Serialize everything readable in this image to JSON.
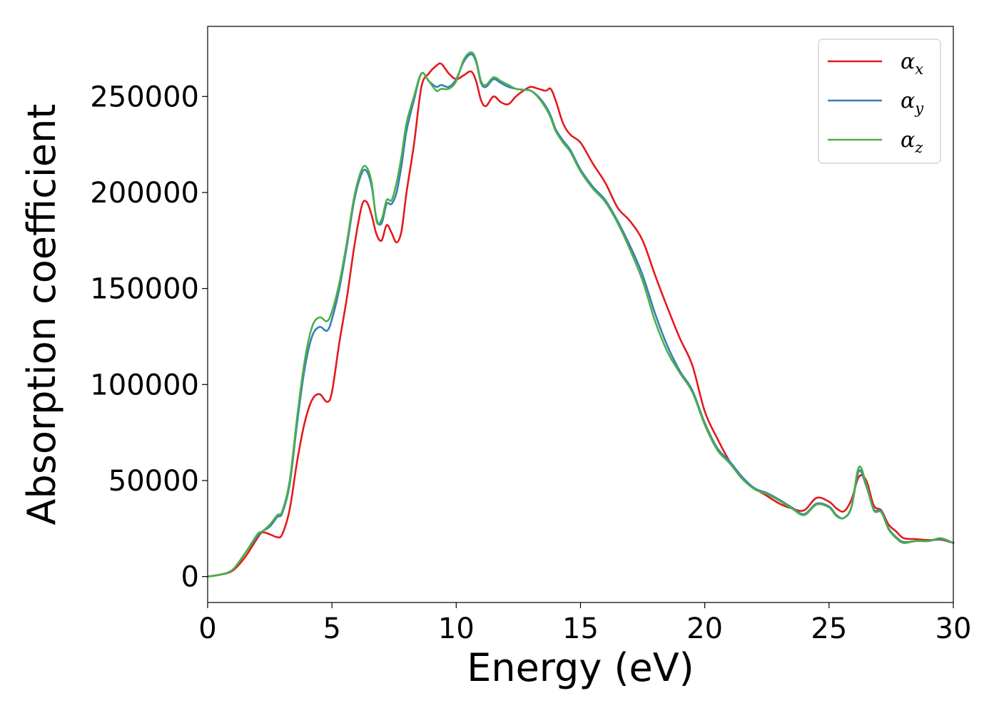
{
  "chart_data": {
    "type": "line",
    "title": "",
    "xlabel": "Energy (eV)",
    "ylabel": "Absorption coefficient",
    "xlim": [
      0,
      30
    ],
    "ylim": [
      -13500,
      286500
    ],
    "xticks": [
      0,
      5,
      10,
      15,
      20,
      25,
      30
    ],
    "yticks": [
      0,
      50000,
      100000,
      150000,
      200000,
      250000
    ],
    "grid": false,
    "legend_position": "top-right",
    "series": [
      {
        "name": "α_x",
        "legend_main": "α",
        "legend_sub": "x",
        "color": "#e41a1c",
        "x": [
          0,
          0.5,
          1.0,
          1.5,
          2.0,
          2.2,
          2.5,
          2.8,
          3.0,
          3.3,
          3.6,
          3.9,
          4.2,
          4.5,
          4.8,
          5.0,
          5.3,
          5.6,
          5.9,
          6.2,
          6.4,
          6.6,
          6.8,
          7.0,
          7.2,
          7.4,
          7.6,
          7.8,
          8.0,
          8.3,
          8.6,
          8.9,
          9.2,
          9.4,
          9.7,
          10.0,
          10.3,
          10.6,
          10.8,
          11.0,
          11.2,
          11.5,
          11.8,
          12.1,
          12.4,
          12.7,
          13.0,
          13.3,
          13.6,
          13.8,
          14.0,
          14.3,
          14.6,
          15.0,
          15.5,
          16.0,
          16.5,
          17.0,
          17.5,
          18.0,
          18.5,
          19.0,
          19.5,
          20.0,
          20.5,
          21.0,
          21.5,
          22.0,
          22.5,
          23.0,
          23.5,
          24.0,
          24.5,
          25.0,
          25.3,
          25.6,
          25.9,
          26.2,
          26.5,
          26.8,
          27.1,
          27.4,
          27.7,
          28.0,
          28.5,
          29.0,
          29.5,
          30.0
        ],
        "y": [
          0,
          1000,
          3000,
          10000,
          20000,
          23000,
          22000,
          20500,
          22000,
          35000,
          60000,
          80000,
          92000,
          95000,
          91000,
          96000,
          122000,
          145000,
          172000,
          193000,
          195000,
          188000,
          178000,
          175000,
          183000,
          179000,
          174000,
          180000,
          200000,
          225000,
          255000,
          262000,
          266000,
          267000,
          262000,
          259000,
          261000,
          263000,
          258000,
          248000,
          245000,
          250000,
          247000,
          246000,
          250000,
          253000,
          255000,
          254000,
          253000,
          254000,
          248000,
          236000,
          230000,
          226000,
          215000,
          205000,
          192000,
          185000,
          175000,
          157000,
          140000,
          124000,
          110000,
          86000,
          72000,
          60000,
          51000,
          46000,
          42000,
          38000,
          35500,
          34500,
          41000,
          39000,
          35500,
          34000,
          40000,
          52000,
          50000,
          37000,
          34500,
          27000,
          23500,
          20000,
          19500,
          19000,
          19200,
          17500
        ]
      },
      {
        "name": "α_y",
        "legend_main": "α",
        "legend_sub": "y",
        "color": "#377eb8",
        "x": [
          0,
          0.5,
          1.0,
          1.5,
          2.0,
          2.2,
          2.5,
          2.8,
          3.0,
          3.3,
          3.6,
          3.9,
          4.2,
          4.5,
          4.8,
          5.0,
          5.3,
          5.6,
          5.9,
          6.2,
          6.4,
          6.6,
          6.8,
          7.0,
          7.2,
          7.4,
          7.6,
          7.8,
          8.0,
          8.3,
          8.6,
          8.9,
          9.2,
          9.4,
          9.7,
          10.0,
          10.3,
          10.6,
          10.8,
          11.0,
          11.2,
          11.5,
          11.8,
          12.1,
          12.4,
          12.7,
          13.0,
          13.3,
          13.6,
          13.8,
          14.0,
          14.3,
          14.6,
          15.0,
          15.5,
          16.0,
          16.5,
          17.0,
          17.5,
          18.0,
          18.5,
          19.0,
          19.5,
          20.0,
          20.5,
          21.0,
          21.5,
          22.0,
          22.5,
          23.0,
          23.5,
          24.0,
          24.5,
          25.0,
          25.3,
          25.6,
          25.9,
          26.2,
          26.5,
          26.8,
          27.1,
          27.4,
          27.7,
          28.0,
          28.5,
          29.0,
          29.5,
          30.0
        ],
        "y": [
          0,
          1000,
          3500,
          12000,
          21000,
          23500,
          26000,
          31000,
          33000,
          48000,
          80000,
          108000,
          125000,
          130000,
          128000,
          134000,
          150000,
          172000,
          196000,
          210000,
          211000,
          203000,
          186000,
          184000,
          194000,
          194000,
          200000,
          214000,
          232000,
          248000,
          262000,
          258000,
          255000,
          256000,
          255000,
          259000,
          268000,
          272000,
          268000,
          257000,
          255000,
          259000,
          257000,
          255000,
          254000,
          253500,
          253000,
          250000,
          245000,
          240000,
          233000,
          227000,
          222000,
          212000,
          203000,
          196000,
          185000,
          172000,
          157000,
          137000,
          120000,
          107000,
          97000,
          80000,
          67000,
          60000,
          52000,
          46000,
          43500,
          40000,
          36000,
          32500,
          38000,
          36500,
          32000,
          30500,
          36000,
          55000,
          47000,
          35000,
          34000,
          25000,
          20500,
          18000,
          18500,
          18500,
          19500,
          17500
        ]
      },
      {
        "name": "α_z",
        "legend_main": "α",
        "legend_sub": "z",
        "color": "#4daf4a",
        "x": [
          0,
          0.5,
          1.0,
          1.5,
          2.0,
          2.2,
          2.5,
          2.8,
          3.0,
          3.3,
          3.6,
          3.9,
          4.2,
          4.5,
          4.8,
          5.0,
          5.3,
          5.6,
          5.9,
          6.2,
          6.4,
          6.6,
          6.8,
          7.0,
          7.2,
          7.4,
          7.6,
          7.8,
          8.0,
          8.3,
          8.6,
          8.9,
          9.2,
          9.4,
          9.7,
          10.0,
          10.3,
          10.6,
          10.8,
          11.0,
          11.2,
          11.5,
          11.8,
          12.1,
          12.4,
          12.7,
          13.0,
          13.3,
          13.6,
          13.8,
          14.0,
          14.3,
          14.6,
          15.0,
          15.5,
          16.0,
          16.5,
          17.0,
          17.5,
          18.0,
          18.5,
          19.0,
          19.5,
          20.0,
          20.5,
          21.0,
          21.5,
          22.0,
          22.5,
          23.0,
          23.5,
          24.0,
          24.5,
          25.0,
          25.3,
          25.6,
          25.9,
          26.2,
          26.5,
          26.8,
          27.1,
          27.4,
          27.7,
          28.0,
          28.5,
          29.0,
          29.5,
          30.0
        ],
        "y": [
          0,
          1000,
          3500,
          12000,
          22000,
          23500,
          27000,
          32000,
          34000,
          50000,
          83000,
          112000,
          130000,
          135000,
          133000,
          138000,
          153000,
          174000,
          198000,
          212000,
          213000,
          205000,
          185000,
          186000,
          196000,
          196000,
          205000,
          219000,
          236000,
          250000,
          262000,
          258000,
          253000,
          254000,
          254000,
          258000,
          269000,
          273000,
          269000,
          258000,
          256000,
          260000,
          258000,
          256000,
          254000,
          253500,
          253000,
          249500,
          244000,
          239000,
          232000,
          226000,
          221000,
          211000,
          202000,
          195000,
          184000,
          170000,
          154000,
          133000,
          117000,
          106000,
          96000,
          79000,
          66000,
          59000,
          51000,
          45500,
          43000,
          39500,
          35500,
          32000,
          37500,
          36000,
          31500,
          30500,
          36500,
          57000,
          48000,
          34500,
          33500,
          24500,
          20000,
          17500,
          18500,
          18500,
          20000,
          17500
        ]
      }
    ]
  }
}
